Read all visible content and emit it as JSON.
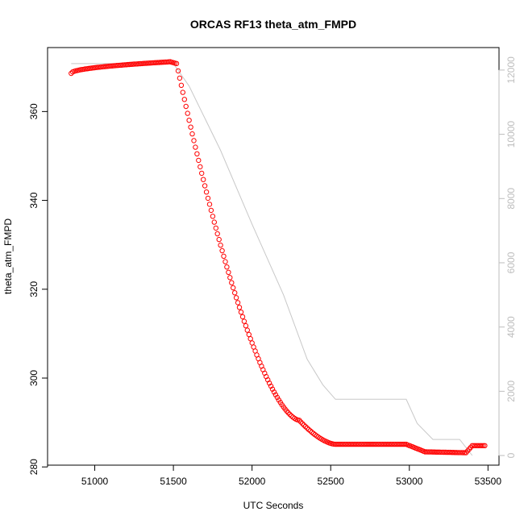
{
  "chart_data": {
    "type": "scatter",
    "title": "ORCAS RF13 theta_atm_FMPD",
    "xlabel": "UTC Seconds",
    "ylabel": "theta_atm_FMPD",
    "xlim": [
      50700,
      53570
    ],
    "ylim": [
      280.4,
      374.4
    ],
    "x_ticks": [
      51000,
      51500,
      52000,
      52500,
      53000,
      53500
    ],
    "y_ticks": [
      280,
      300,
      320,
      340,
      360
    ],
    "series": [
      {
        "marker": "open-circle",
        "color": "#ff0000",
        "segments": [
          {
            "x_start": 50850,
            "x_end": 51480,
            "y_start": 368.6,
            "y_end": 371.2,
            "curve": "sqrt"
          },
          {
            "x_start": 51480,
            "x_end": 51520,
            "y_start": 371.2,
            "y_end": 370.8,
            "curve": "linear"
          },
          {
            "x_start": 51520,
            "x_end": 52300,
            "y_start": 370.8,
            "y_end": 290.5,
            "curve": "ease-out"
          },
          {
            "x_start": 52300,
            "x_end": 52530,
            "y_start": 290.5,
            "y_end": 285.1,
            "curve": "ease-out"
          },
          {
            "x_start": 52530,
            "x_end": 52980,
            "y_start": 285.1,
            "y_end": 285.1,
            "curve": "linear"
          },
          {
            "x_start": 52980,
            "x_end": 53100,
            "y_start": 285.1,
            "y_end": 283.4,
            "curve": "linear"
          },
          {
            "x_start": 53100,
            "x_end": 53360,
            "y_start": 283.4,
            "y_end": 283.2,
            "curve": "linear"
          },
          {
            "x_start": 53360,
            "x_end": 53400,
            "y_start": 283.2,
            "y_end": 284.8,
            "curve": "linear"
          },
          {
            "x_start": 53400,
            "x_end": 53480,
            "y_start": 284.8,
            "y_end": 284.8,
            "curve": "linear"
          }
        ],
        "spacing": 10
      }
    ],
    "secondary_axis": {
      "side": "right",
      "color": "#bdbdbd",
      "ylim": [
        -300,
        12700
      ],
      "ticks": [
        0,
        2000,
        4000,
        6000,
        8000,
        10000,
        12000
      ],
      "line": {
        "color": "#c8c8c8",
        "x": [
          50850,
          51500,
          51600,
          51800,
          52000,
          52200,
          52350,
          52450,
          52530,
          52980,
          53050,
          53150,
          53320,
          53400
        ],
        "y": [
          12200,
          12200,
          11500,
          9500,
          7200,
          5000,
          3000,
          2200,
          1750,
          1750,
          1000,
          500,
          500,
          0
        ]
      }
    },
    "grid": false,
    "legend": "none"
  }
}
